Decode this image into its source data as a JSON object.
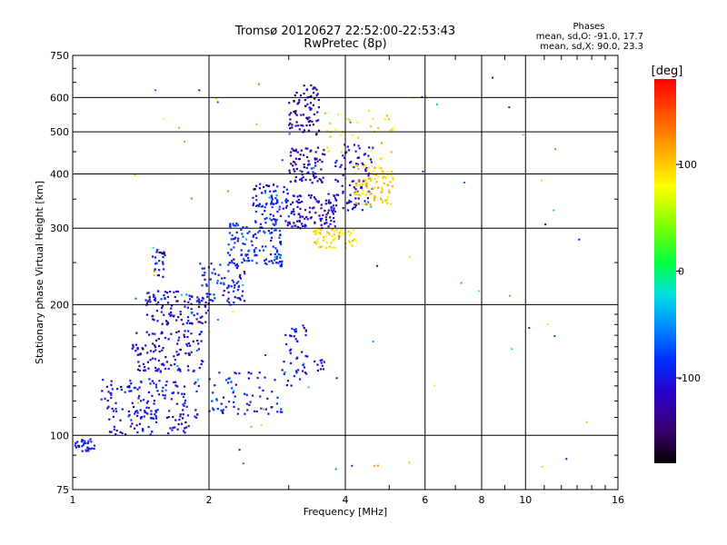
{
  "chart_data": {
    "type": "scatter",
    "title": "Tromsø 20120627 22:52:00-22:53:43",
    "subtitle": "RwPretec (8p)",
    "xlabel": "Frequency [MHz]",
    "ylabel": "Stationary phase Virtual Height [km]",
    "x_scale": "log",
    "y_scale": "log",
    "xlim": [
      1,
      16
    ],
    "ylim": [
      75,
      750
    ],
    "x_ticks": [
      1,
      2,
      4,
      6,
      8,
      10,
      16
    ],
    "x_tick_labels": [
      "1",
      "2",
      "4",
      "6",
      "8",
      "10",
      "16"
    ],
    "y_ticks": [
      75,
      100,
      200,
      300,
      400,
      500,
      600,
      750
    ],
    "y_tick_labels": [
      "75",
      "100",
      "200",
      "300",
      "400",
      "500",
      "600",
      "750"
    ],
    "grid": true,
    "phases_box": {
      "heading": "Phases",
      "line_o": "mean, sd,O: -91.0, 17.7",
      "line_x": "mean, sd,X:  90.0, 23.3"
    },
    "colorbar": {
      "label": "[deg]",
      "range": [
        -180,
        180
      ],
      "ticks": [
        100,
        0,
        -100
      ],
      "tick_labels": [
        "100",
        "0",
        "-100"
      ],
      "colormap": "rainbow"
    },
    "traces": [
      {
        "name": "",
        "freq_range": [
          1.0,
          1.12
        ],
        "height_range": [
          92,
          98
        ],
        "phase": -100,
        "count": 30
      },
      {
        "name": "",
        "freq_range": [
          1.2,
          1.9
        ],
        "height_range": [
          100,
          115
        ],
        "phase": -105,
        "count": 90
      },
      {
        "name": "",
        "freq_range": [
          1.15,
          1.9
        ],
        "height_range": [
          115,
          135
        ],
        "phase": -100,
        "count": 90
      },
      {
        "name": "",
        "freq_range": [
          1.35,
          1.95
        ],
        "height_range": [
          140,
          175
        ],
        "phase": -110,
        "count": 120
      },
      {
        "name": "",
        "freq_range": [
          1.45,
          2.0
        ],
        "height_range": [
          180,
          215
        ],
        "phase": -110,
        "count": 110
      },
      {
        "name": "",
        "freq_range": [
          1.5,
          1.6
        ],
        "height_range": [
          230,
          270
        ],
        "phase": -100,
        "count": 25
      },
      {
        "name": "",
        "freq_range": [
          1.9,
          2.4
        ],
        "height_range": [
          200,
          250
        ],
        "phase": -95,
        "count": 80
      },
      {
        "name": "",
        "freq_range": [
          2.2,
          2.9
        ],
        "height_range": [
          245,
          310
        ],
        "phase": -90,
        "count": 130
      },
      {
        "name": "",
        "freq_range": [
          2.5,
          3.0
        ],
        "height_range": [
          310,
          380
        ],
        "phase": -95,
        "count": 80
      },
      {
        "name": "",
        "freq_range": [
          2.95,
          3.8
        ],
        "height_range": [
          300,
          360
        ],
        "phase": -115,
        "count": 110
      },
      {
        "name": "",
        "freq_range": [
          3.0,
          3.6
        ],
        "height_range": [
          380,
          460
        ],
        "phase": -120,
        "count": 80
      },
      {
        "name": "",
        "freq_range": [
          3.0,
          3.5
        ],
        "height_range": [
          490,
          640
        ],
        "phase": -125,
        "count": 80
      },
      {
        "name": "",
        "freq_range": [
          3.8,
          4.6
        ],
        "height_range": [
          330,
          470
        ],
        "phase": -105,
        "count": 90
      },
      {
        "name": "",
        "freq_range": [
          3.4,
          4.2
        ],
        "height_range": [
          270,
          300
        ],
        "phase": 95,
        "count": 60
      },
      {
        "name": "",
        "freq_range": [
          4.2,
          5.1
        ],
        "height_range": [
          340,
          420
        ],
        "phase": 100,
        "count": 90
      },
      {
        "name": "",
        "freq_range": [
          3.6,
          5.2
        ],
        "height_range": [
          430,
          560
        ],
        "phase": 90,
        "count": 35
      },
      {
        "name": "",
        "freq_range": [
          2.0,
          2.9
        ],
        "height_range": [
          112,
          140
        ],
        "phase": -95,
        "count": 70
      },
      {
        "name": "",
        "freq_range": [
          2.9,
          3.3
        ],
        "height_range": [
          130,
          180
        ],
        "phase": -105,
        "count": 45
      },
      {
        "name": "",
        "freq_range": [
          3.4,
          3.6
        ],
        "height_range": [
          140,
          150
        ],
        "phase": -110,
        "count": 10
      }
    ]
  }
}
